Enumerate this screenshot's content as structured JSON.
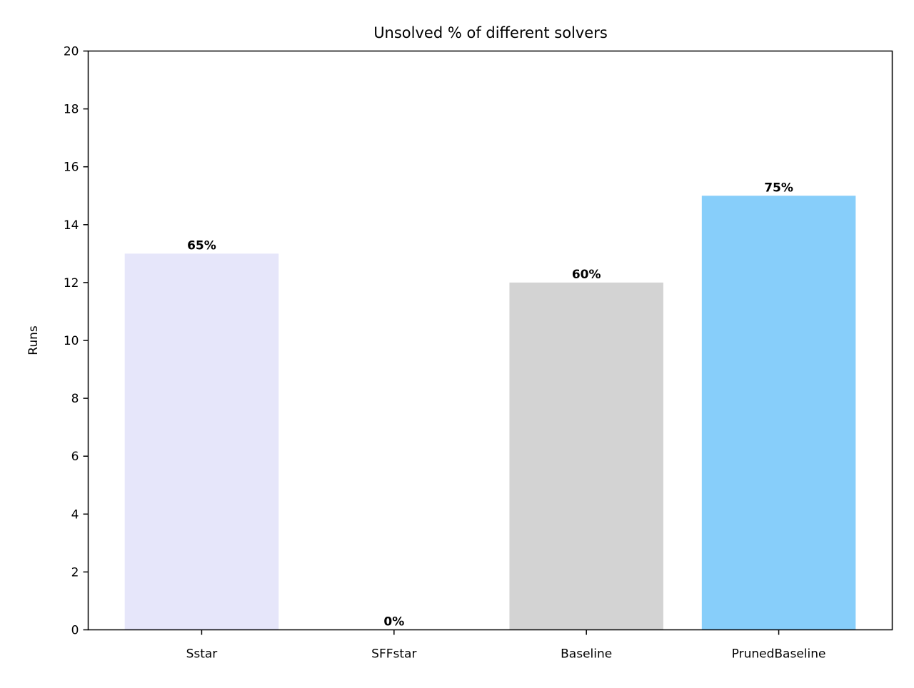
{
  "chart_data": {
    "type": "bar",
    "title": "Unsolved % of different solvers",
    "xlabel": "",
    "ylabel": "Runs",
    "categories": [
      "Sstar",
      "SFFstar",
      "Baseline",
      "PrunedBaseline"
    ],
    "values": [
      13,
      0,
      12,
      15
    ],
    "bar_labels": [
      "65%",
      "0%",
      "60%",
      "75%"
    ],
    "bar_colors": [
      "#e6e6fa",
      "#ffffff",
      "#d3d3d3",
      "#87cefa"
    ],
    "ylim": [
      0,
      20
    ],
    "yticks": [
      "0",
      "2",
      "4",
      "6",
      "8",
      "10",
      "12",
      "14",
      "16",
      "18",
      "20"
    ],
    "grid": false,
    "legend": false
  }
}
